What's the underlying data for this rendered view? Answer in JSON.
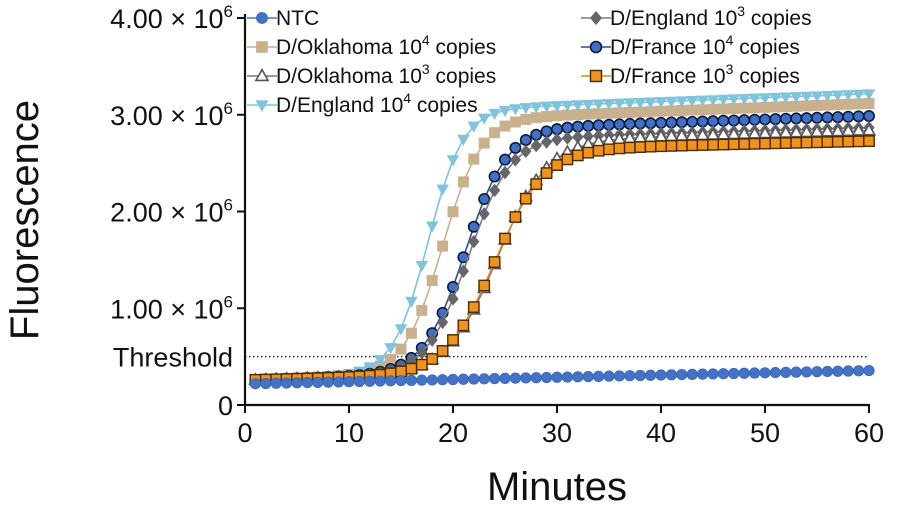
{
  "chart_data": {
    "type": "scatter",
    "xlabel": "Minutes",
    "ylabel": "Fluorescence",
    "xlim": [
      0,
      60
    ],
    "ylim": [
      0,
      4000000
    ],
    "x_ticks": [
      0,
      10,
      20,
      30,
      40,
      50,
      60
    ],
    "y_ticks": [
      {
        "value": 0,
        "label": "0",
        "sup": ""
      },
      {
        "value": 1000000,
        "label": "1.00 × 10",
        "sup": "6"
      },
      {
        "value": 2000000,
        "label": "2.00 × 10",
        "sup": "6"
      },
      {
        "value": 3000000,
        "label": "3.00 × 10",
        "sup": "6"
      },
      {
        "value": 4000000,
        "label": "4.00 × 10",
        "sup": "6"
      }
    ],
    "threshold": {
      "label": "Threshold",
      "value": 500000
    },
    "grid": false,
    "legend_position": "top",
    "x": [
      1,
      2,
      3,
      4,
      5,
      6,
      7,
      8,
      9,
      10,
      11,
      12,
      13,
      14,
      15,
      16,
      17,
      18,
      19,
      20,
      21,
      22,
      23,
      24,
      25,
      26,
      27,
      28,
      29,
      30,
      31,
      32,
      33,
      34,
      35,
      36,
      37,
      38,
      39,
      40,
      41,
      42,
      43,
      44,
      45,
      46,
      47,
      48,
      49,
      50,
      51,
      52,
      53,
      54,
      55,
      56,
      57,
      58,
      59,
      60
    ],
    "series": [
      {
        "name": "NTC",
        "marker": "circle",
        "color": "#4472c4",
        "stroke": "#3a66b8",
        "line": "#4472c4",
        "params": {
          "base": 220000,
          "slope": 2300,
          "start": 1,
          "plateau": 0,
          "mid": 0,
          "k": 1
        }
      },
      {
        "name": "D/Oklahoma 10",
        "sup": "4",
        "suffix": " copies",
        "marker": "square",
        "color": "#c9b18d",
        "stroke": "#c9b18d",
        "line": "#c9b18d",
        "params": {
          "base": 260000,
          "slope": 4000,
          "start": 1,
          "plateau": 2620000,
          "mid": 19.0,
          "k": 0.55
        }
      },
      {
        "name": "D/Oklahoma 10",
        "sup": "3",
        "suffix": " copies",
        "marker": "triangle-up-open",
        "color": "#ffffff",
        "stroke": "#555555",
        "line": "#777777",
        "params": {
          "base": 260000,
          "slope": 3000,
          "start": 1,
          "plateau": 2400000,
          "mid": 24.3,
          "k": 0.42
        }
      },
      {
        "name": "D/England 10",
        "sup": "4",
        "suffix": " copies",
        "marker": "triangle-down",
        "color": "#7fc3dc",
        "stroke": "#7fc3dc",
        "line": "#7fc3dc",
        "params": {
          "base": 260000,
          "slope": 4000,
          "start": 1,
          "plateau": 2720000,
          "mid": 17.6,
          "k": 0.6
        }
      },
      {
        "name": "D/England 10",
        "sup": "3",
        "suffix": " copies",
        "marker": "diamond",
        "color": "#66666a",
        "stroke": "#66666a",
        "line": "#7a7a7e",
        "params": {
          "base": 260000,
          "slope": 3000,
          "start": 1,
          "plateau": 2430000,
          "mid": 21.5,
          "k": 0.5
        }
      },
      {
        "name": "D/France 10",
        "sup": "4",
        "suffix": " copies",
        "marker": "circle-outlined",
        "color": "#3f6fc6",
        "stroke": "#0d1b3a",
        "line": "#2d4f8c",
        "params": {
          "base": 260000,
          "slope": 3500,
          "start": 1,
          "plateau": 2520000,
          "mid": 21.2,
          "k": 0.5
        }
      },
      {
        "name": "D/France 10",
        "sup": "3",
        "suffix": " copies",
        "marker": "square-outlined",
        "color": "#f0921e",
        "stroke": "#4a2a00",
        "line": "#d98a2a",
        "params": {
          "base": 260000,
          "slope": 2500,
          "start": 1,
          "plateau": 2320000,
          "mid": 24.0,
          "k": 0.42
        }
      }
    ]
  }
}
